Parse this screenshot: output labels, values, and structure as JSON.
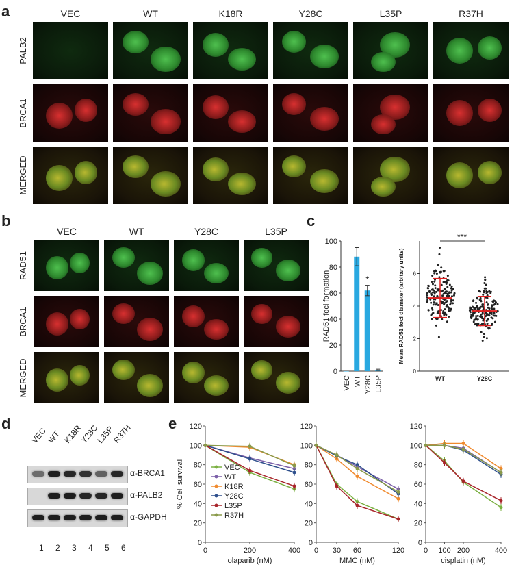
{
  "panels": {
    "a": "a",
    "b": "b",
    "c": "c",
    "d": "d",
    "e": "e"
  },
  "panel_a": {
    "columns": [
      "VEC",
      "WT",
      "K18R",
      "Y28C",
      "L35P",
      "R37H"
    ],
    "rows": [
      "PALB2",
      "BRCA1",
      "MERGED"
    ]
  },
  "panel_b": {
    "columns": [
      "VEC",
      "WT",
      "Y28C",
      "L35P"
    ],
    "rows": [
      "RAD51",
      "BRCA1",
      "MERGED"
    ]
  },
  "panel_d": {
    "lanes": [
      "VEC",
      "WT",
      "K18R",
      "Y28C",
      "L35P",
      "R37H"
    ],
    "lane_numbers": [
      "1",
      "2",
      "3",
      "4",
      "5",
      "6"
    ],
    "bands": [
      "α-BRCA1",
      "α-PALB2",
      "α-GAPDH"
    ]
  },
  "chart_data": [
    {
      "type": "bar",
      "categories": [
        "VEC",
        "WT",
        "Y28C",
        "L35P"
      ],
      "values": [
        0,
        88,
        62,
        1
      ],
      "errors": [
        0,
        7,
        4,
        0.5
      ],
      "ylabel": "RAD51 foci formation",
      "ylim": [
        0,
        100
      ],
      "yticks": [
        "0",
        "20",
        "40",
        "60",
        "80",
        "100"
      ],
      "annotation": "*",
      "color": "#29a8e0"
    },
    {
      "type": "scatter",
      "categories": [
        "WT",
        "Y28C"
      ],
      "means": [
        4.5,
        3.7
      ],
      "sd": [
        1.2,
        0.9
      ],
      "ylabel": "Mean RAD51 foci diameter (arbitary units)",
      "ylim": [
        0,
        8
      ],
      "yticks": [
        "0",
        "2",
        "4",
        "6"
      ],
      "significance": "***"
    },
    {
      "type": "line",
      "xlabel": "olaparib (nM)",
      "ylabel": "% Cell survival",
      "x": [
        0,
        200,
        400
      ],
      "xticks": [
        "0",
        "200",
        "400"
      ],
      "yticks": [
        "0",
        "20",
        "40",
        "60",
        "80",
        "100",
        "120"
      ],
      "ylim": [
        0,
        120
      ],
      "series": [
        {
          "name": "VEC",
          "color": "#7bb042",
          "values": [
            100,
            72,
            55
          ]
        },
        {
          "name": "WT",
          "color": "#7b5fa8",
          "values": [
            100,
            87,
            76
          ]
        },
        {
          "name": "K18R",
          "color": "#f08a2e",
          "values": [
            100,
            98,
            80
          ]
        },
        {
          "name": "Y28C",
          "color": "#2e4f8c",
          "values": [
            100,
            86,
            72
          ]
        },
        {
          "name": "L35P",
          "color": "#a8242a",
          "values": [
            100,
            74,
            58
          ]
        },
        {
          "name": "R37H",
          "color": "#8a9a4a",
          "values": [
            100,
            99,
            79
          ]
        }
      ]
    },
    {
      "type": "line",
      "xlabel": "MMC  (nM)",
      "x": [
        0,
        30,
        60,
        120
      ],
      "xticks": [
        "0",
        "30",
        "60",
        "120"
      ],
      "yticks": [
        "0",
        "20",
        "40",
        "60",
        "80",
        "100",
        "120"
      ],
      "ylim": [
        0,
        120
      ],
      "series": [
        {
          "name": "VEC",
          "color": "#7bb042",
          "values": [
            100,
            60,
            42,
            24
          ]
        },
        {
          "name": "WT",
          "color": "#7b5fa8",
          "values": [
            100,
            90,
            78,
            55
          ]
        },
        {
          "name": "K18R",
          "color": "#f08a2e",
          "values": [
            100,
            86,
            68,
            45
          ]
        },
        {
          "name": "Y28C",
          "color": "#2e4f8c",
          "values": [
            100,
            89,
            80,
            50
          ]
        },
        {
          "name": "L35P",
          "color": "#a8242a",
          "values": [
            100,
            58,
            38,
            24
          ]
        },
        {
          "name": "R37H",
          "color": "#8a9a4a",
          "values": [
            100,
            90,
            76,
            52
          ]
        }
      ]
    },
    {
      "type": "line",
      "xlabel": "cisplatin (nM)",
      "x": [
        0,
        100,
        200,
        400
      ],
      "xticks": [
        "0",
        "100",
        "200",
        "400"
      ],
      "yticks": [
        "0",
        "20",
        "40",
        "60",
        "80",
        "100",
        "120"
      ],
      "ylim": [
        0,
        120
      ],
      "series": [
        {
          "name": "VEC",
          "color": "#7bb042",
          "values": [
            100,
            84,
            62,
            36
          ]
        },
        {
          "name": "WT",
          "color": "#7b5fa8",
          "values": [
            100,
            100,
            97,
            72
          ]
        },
        {
          "name": "K18R",
          "color": "#f08a2e",
          "values": [
            100,
            102,
            102,
            76
          ]
        },
        {
          "name": "Y28C",
          "color": "#2e4f8c",
          "values": [
            100,
            100,
            95,
            70
          ]
        },
        {
          "name": "L35P",
          "color": "#a8242a",
          "values": [
            100,
            82,
            63,
            43
          ]
        },
        {
          "name": "R37H",
          "color": "#8a9a4a",
          "values": [
            100,
            100,
            96,
            72
          ]
        }
      ]
    }
  ]
}
